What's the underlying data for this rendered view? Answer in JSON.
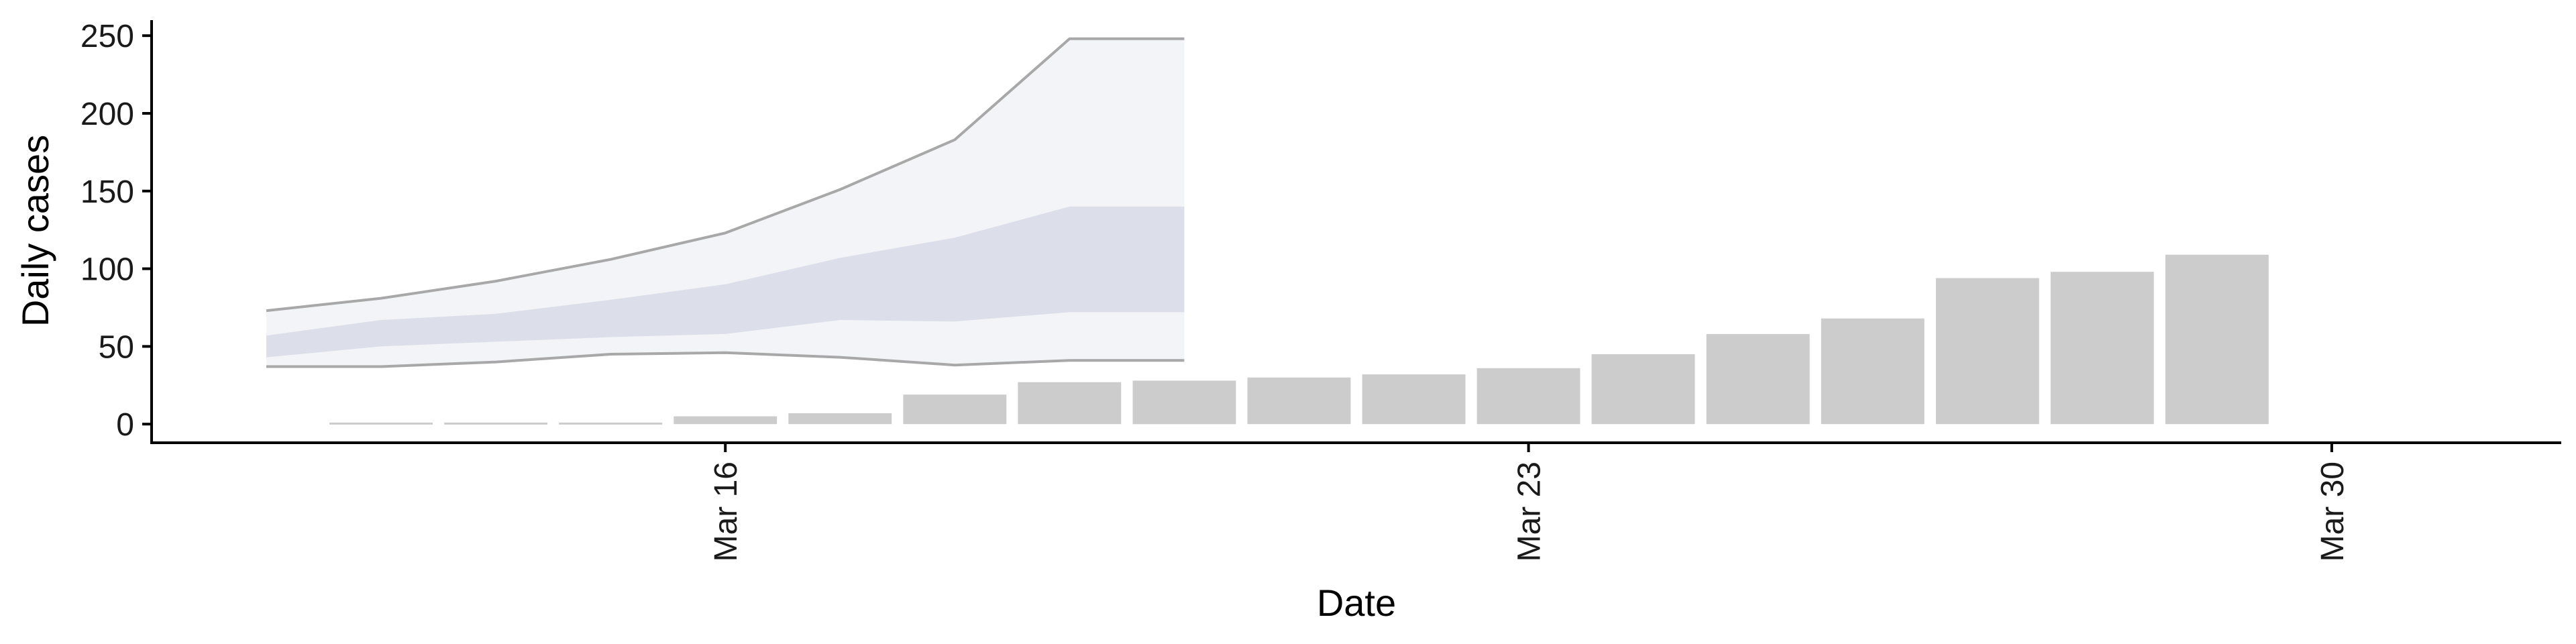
{
  "chart_data": {
    "type": "bar",
    "title": "",
    "xlabel": "Date",
    "ylabel": "Daily cases",
    "ylim": [
      -12,
      260
    ],
    "xlim": [
      "2020-03-11",
      "2020-04-01"
    ],
    "grid": false,
    "y_ticks": [
      0,
      50,
      100,
      150,
      200,
      250
    ],
    "x_ticks": [
      {
        "date": "2020-03-16",
        "label": "Mar 16"
      },
      {
        "date": "2020-03-23",
        "label": "Mar 23"
      },
      {
        "date": "2020-03-30",
        "label": "Mar 30"
      }
    ],
    "bars": {
      "color": "#cccccc",
      "x": [
        "2020-03-13",
        "2020-03-14",
        "2020-03-15",
        "2020-03-16",
        "2020-03-17",
        "2020-03-18",
        "2020-03-19",
        "2020-03-20",
        "2020-03-21",
        "2020-03-22",
        "2020-03-23",
        "2020-03-24",
        "2020-03-25",
        "2020-03-26",
        "2020-03-27",
        "2020-03-28",
        "2020-03-29",
        "2020-03-30"
      ],
      "values": [
        1,
        1,
        1,
        5,
        7,
        19,
        27,
        28,
        30,
        32,
        36,
        45,
        58,
        68,
        94,
        98,
        109,
        0
      ]
    },
    "forecast": {
      "x": [
        "2020-03-12",
        "2020-03-13",
        "2020-03-14",
        "2020-03-15",
        "2020-03-16",
        "2020-03-17",
        "2020-03-18",
        "2020-03-19",
        "2020-03-20"
      ],
      "outer_lower": [
        37,
        37,
        40,
        45,
        46,
        43,
        38,
        41,
        41
      ],
      "outer_upper": [
        73,
        81,
        92,
        106,
        123,
        151,
        183,
        248,
        248
      ],
      "inner_lower": [
        43,
        50,
        53,
        56,
        58,
        67,
        66,
        72,
        72
      ],
      "inner_upper": [
        57,
        67,
        71,
        80,
        90,
        107,
        120,
        140,
        140
      ],
      "outer_color": "#f3f4f8",
      "inner_color": "#dcdfea",
      "line_color": "#a8a8a8"
    }
  }
}
